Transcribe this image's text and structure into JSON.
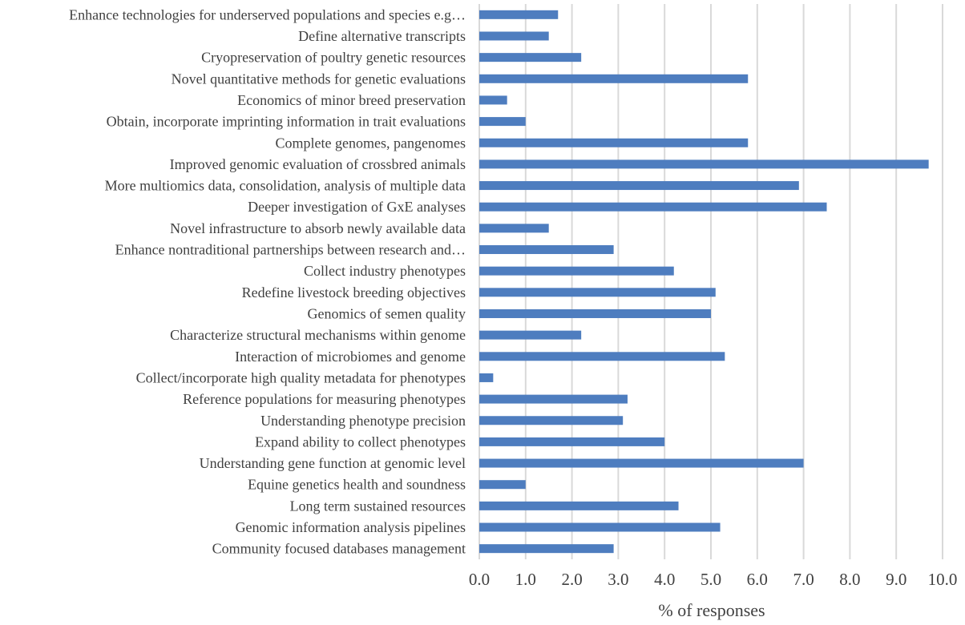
{
  "chart_data": {
    "type": "bar",
    "orientation": "horizontal",
    "title": "",
    "xlabel": "% of responses",
    "ylabel": "",
    "xlim": [
      0,
      10
    ],
    "x_ticks": [
      "0.0",
      "1.0",
      "2.0",
      "3.0",
      "4.0",
      "5.0",
      "6.0",
      "7.0",
      "8.0",
      "9.0",
      "10.0"
    ],
    "grid": "vertical",
    "legend": "none",
    "bar_color": "#4e7dbf",
    "categories": [
      "Enhance technologies for underserved populations and species e.g…",
      "Define alternative transcripts",
      "Cryopreservation of poultry genetic resources",
      "Novel quantitative methods for genetic evaluations",
      "Economics of minor breed preservation",
      "Obtain, incorporate imprinting information in trait evaluations",
      "Complete genomes, pangenomes",
      "Improved genomic evaluation of crossbred animals",
      "More multiomics data, consolidation, analysis of multiple data",
      "Deeper investigation of GxE analyses",
      "Novel infrastructure to absorb newly available data",
      "Enhance nontraditional partnerships between research and…",
      "Collect industry phenotypes",
      "Redefine livestock breeding objectives",
      "Genomics of semen quality",
      "Characterize structural mechanisms within genome",
      "Interaction of microbiomes and genome",
      "Collect/incorporate high quality metadata for phenotypes",
      "Reference populations for measuring phenotypes",
      "Understanding phenotype precision",
      "Expand ability to collect phenotypes",
      "Understanding gene function at genomic level",
      "Equine genetics health and soundness",
      "Long term sustained resources ",
      "Genomic information analysis pipelines",
      "Community focused databases management"
    ],
    "values": [
      1.7,
      1.5,
      2.2,
      5.8,
      0.6,
      1.0,
      5.8,
      9.7,
      6.9,
      7.5,
      1.5,
      2.9,
      4.2,
      5.1,
      5.0,
      2.2,
      5.3,
      0.3,
      3.2,
      3.1,
      4.0,
      7.0,
      1.0,
      4.3,
      5.2,
      2.9
    ]
  }
}
